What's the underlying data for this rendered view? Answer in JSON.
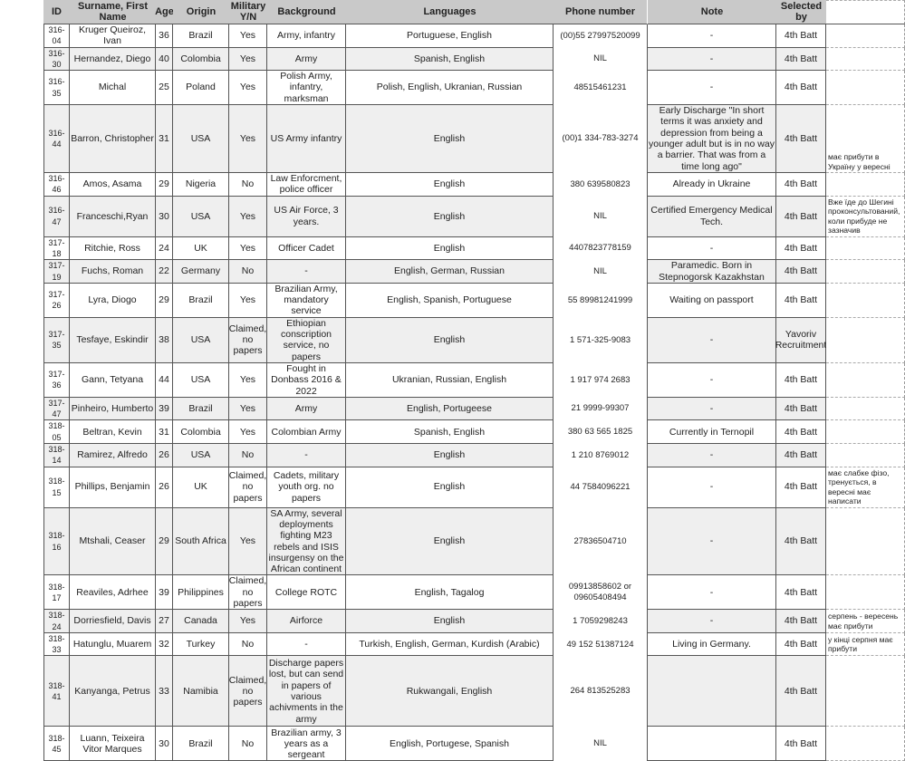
{
  "headers": [
    "ID",
    "Surname, First Name",
    "Age",
    "Origin",
    "Military Y/N",
    "Background",
    "Languages",
    "Phone number",
    "Note",
    "Selected by",
    ""
  ],
  "rows": [
    [
      "316-04",
      "Kruger Queiroz, Ivan",
      "36",
      "Brazil",
      "Yes",
      "Army, infantry",
      "Portuguese, English",
      "(00)55 27997520099",
      "-",
      "4th Batt"
    ],
    [
      "316-30",
      "Hernandez, Diego",
      "40",
      "Colombia",
      "Yes",
      "Army",
      "Spanish, English",
      "NIL",
      "-",
      "4th Batt"
    ],
    [
      "316-35",
      "Michal",
      "25",
      "Poland",
      "Yes",
      "Polish Army, infantry, marksman",
      "Polish, English, Ukranian, Russian",
      "48515461231",
      "-",
      "4th Batt"
    ],
    [
      "316-44",
      "Barron, Christopher",
      "31",
      "USA",
      "Yes",
      "US Army infantry",
      "English",
      "(00)1 334-783-3274",
      "Early Discharge \"In short terms it was anxiety and depression from being a younger adult but is in no way a barrier. That was from a time long ago\"",
      "4th Batt"
    ],
    [
      "316-46",
      "Amos, Asama",
      "29",
      "Nigeria",
      "No",
      "Law Enforcment, police officer",
      "English",
      "380 639580823",
      "Already in Ukraine",
      "4th Batt"
    ],
    [
      "316-47",
      "Franceschi,Ryan",
      "30",
      "USA",
      "Yes",
      "US Air Force, 3 years.",
      "English",
      "NIL",
      "Certified Emergency Medical Tech.",
      "4th Batt"
    ],
    [
      "317-18",
      "Ritchie, Ross",
      "24",
      "UK",
      "Yes",
      "Officer Cadet",
      "English",
      "4407823778159",
      "-",
      "4th Batt"
    ],
    [
      "317-19",
      "Fuchs, Roman",
      "22",
      "Germany",
      "No",
      "-",
      "English, German, Russian",
      "NIL",
      "Paramedic. Born in Stepnogorsk Kazakhstan",
      "4th Batt"
    ],
    [
      "317-26",
      "Lyra, Diogo",
      "29",
      "Brazil",
      "Yes",
      "Brazilian Army, mandatory service",
      "English, Spanish, Portuguese",
      "55 89981241999",
      "Waiting on passport",
      "4th Batt"
    ],
    [
      "317-35",
      "Tesfaye, Eskindir",
      "38",
      "USA",
      "Claimed, no papers",
      "Ethiopian conscription service, no papers",
      "English",
      "1 571-325-9083",
      "-",
      "Yavoriv Recruitment"
    ],
    [
      "317-36",
      "Gann, Tetyana",
      "44",
      "USA",
      "Yes",
      "Fought in Donbass 2016 & 2022",
      "Ukranian, Russian, English",
      "1 917 974 2683",
      "-",
      "4th Batt"
    ],
    [
      "317-47",
      "Pinheiro, Humberto",
      "39",
      "Brazil",
      "Yes",
      "Army",
      "English, Portugeese",
      "21 9999-99307",
      "-",
      "4th Batt"
    ],
    [
      "318-05",
      "Beltran, Kevin",
      "31",
      "Colombia",
      "Yes",
      "Colombian Army",
      "Spanish, English",
      "380 63 565 1825",
      "Currently in Ternopil",
      "4th Batt"
    ],
    [
      "318-14",
      "Ramirez, Alfredo",
      "26",
      "USA",
      "No",
      "-",
      "English",
      "1 210 8769012",
      "-",
      "4th Batt"
    ],
    [
      "318-15",
      "Phillips, Benjamin",
      "26",
      "UK",
      "Claimed, no papers",
      "Cadets, military youth org. no papers",
      "English",
      "44 7584096221",
      "-",
      "4th Batt"
    ],
    [
      "318-16",
      "Mtshali, Ceaser",
      "29",
      "South Africa",
      "Yes",
      "SA Army, several deployments fighting M23 rebels and ISIS insurgensy on the African continent",
      "English",
      "27836504710",
      "-",
      "4th Batt"
    ],
    [
      "318-17",
      "Reaviles, Adrhee",
      "39",
      "Philippines",
      "Claimed, no papers",
      "College ROTC",
      "English, Tagalog",
      "09913858602 or 09605408494",
      "-",
      "4th Batt"
    ],
    [
      "318-24",
      "Dorriesfield, Davis",
      "27",
      "Canada",
      "Yes",
      "Airforce",
      "English",
      "1 7059298243",
      "-",
      "4th Batt"
    ],
    [
      "318-33",
      "Hatunglu, Muarem",
      "32",
      "Turkey",
      "No",
      "-",
      "Turkish, English, German, Kurdish (Arabic)",
      "49 152 51387124",
      "Living in Germany.",
      "4th Batt"
    ],
    [
      "318-41",
      "Kanyanga, Petrus",
      "33",
      "Namibia",
      "Claimed, no papers",
      "Discharge papers lost, but can send in papers of various achivments in the army",
      "Rukwangali, English",
      "264 813525283",
      "",
      "4th Batt"
    ],
    [
      "318-45",
      "Luann, Teixeira Vitor Marques",
      "30",
      "Brazil",
      "No",
      "Brazilian army, 3 years as a sergeant",
      "English, Portugese, Spanish",
      "NIL",
      "",
      "4th Batt"
    ]
  ],
  "side_notes": [
    "має прибути в Україну у вересні",
    "Вже їде до Шегині проконсультований, коли прибуде не зазначив",
    "має слабке фізо, тренується, в вересні має написати",
    "серпень - вересень має прибути",
    "у кінці серпня має прибути"
  ],
  "colors": {
    "header_bg": "#c9c9c9",
    "alt_row_bg": "#efefef",
    "grid": "#555555"
  }
}
